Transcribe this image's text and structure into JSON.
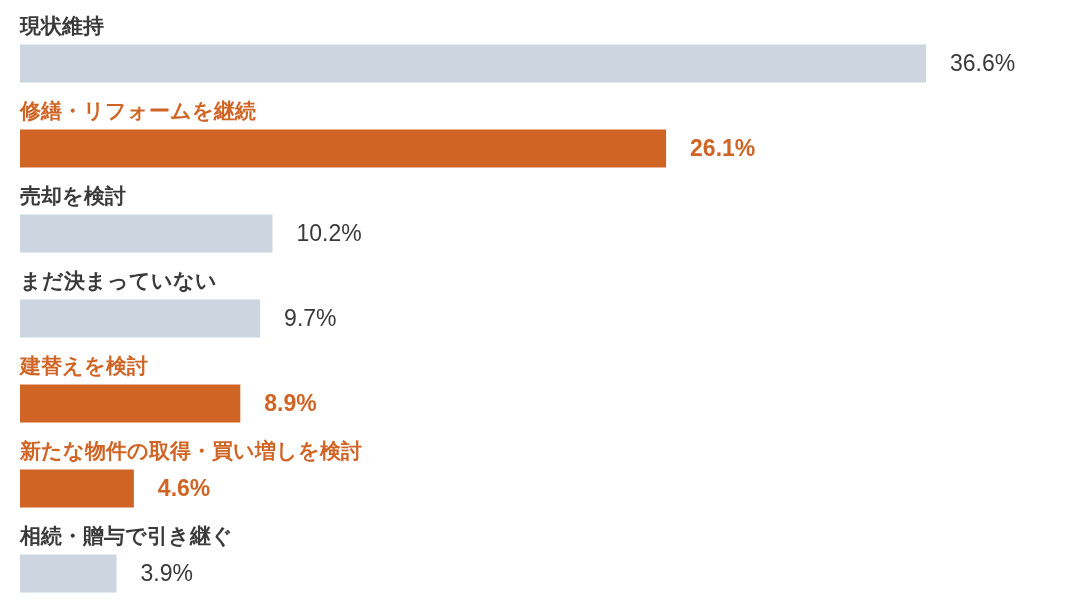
{
  "chart_data": {
    "type": "bar",
    "orientation": "horizontal",
    "categories": [
      "現状維持",
      "修繕・リフォームを継続",
      "売却を検討",
      "まだ決まっていない",
      "建替えを検討",
      "新たな物件の取得・買い増しを検討",
      "相続・贈与で引き継ぐ"
    ],
    "values": [
      36.6,
      26.1,
      10.2,
      9.7,
      8.9,
      4.6,
      3.9
    ],
    "colors": [
      "#ccd5e0",
      "#d06424",
      "#ccd5e0",
      "#ccd5e0",
      "#d06424",
      "#d06424",
      "#ccd5e0"
    ],
    "value_labels": [
      "36.6%",
      "26.1%",
      "10.2%",
      "9.7%",
      "8.9%",
      "4.6%",
      "3.9%"
    ]
  }
}
